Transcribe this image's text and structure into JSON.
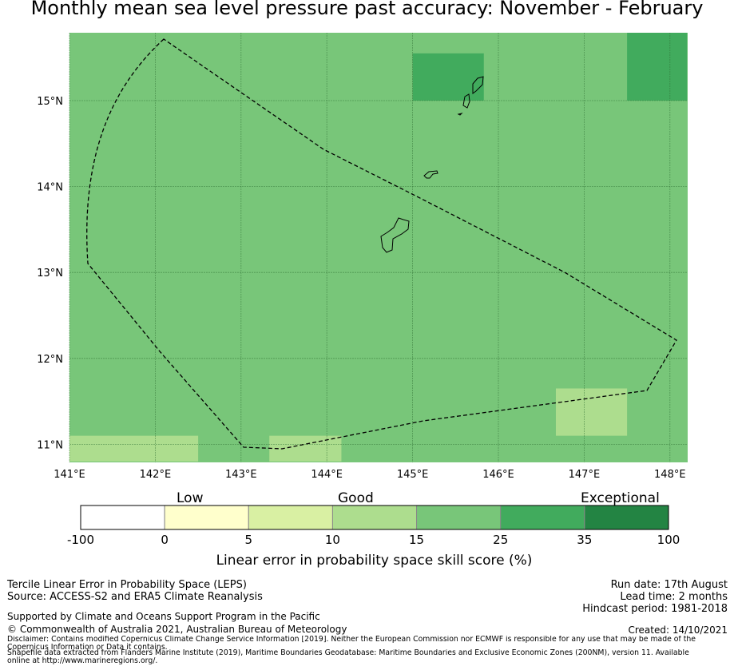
{
  "title": "Monthly mean sea level pressure past accuracy: November - February",
  "map": {
    "lon_labels": [
      "141°E",
      "142°E",
      "143°E",
      "144°E",
      "145°E",
      "146°E",
      "147°E",
      "148°E"
    ],
    "lat_labels": [
      "15°N",
      "14°N",
      "13°N",
      "12°N",
      "11°N"
    ],
    "base_color": "#78c679",
    "cells": [
      {
        "lon": [
          145.0,
          145.83
        ],
        "lat": [
          15.0,
          15.55
        ],
        "category": "25-35",
        "color": "#41ab5d"
      },
      {
        "lon": [
          147.5,
          148.2
        ],
        "lat": [
          15.0,
          15.8
        ],
        "category": "25-35",
        "color": "#41ab5d"
      },
      {
        "lon": [
          146.67,
          147.5
        ],
        "lat": [
          11.1,
          11.65
        ],
        "category": "10-15",
        "color": "#addd8e"
      },
      {
        "lon": [
          141.0,
          142.5
        ],
        "lat": [
          10.8,
          11.1
        ],
        "category": "10-15",
        "color": "#addd8e"
      },
      {
        "lon": [
          143.33,
          144.17
        ],
        "lat": [
          10.8,
          11.1
        ],
        "category": "10-15",
        "color": "#addd8e"
      }
    ]
  },
  "colorbar": {
    "category_labels": [
      "Low",
      "Good",
      "Exceptional"
    ],
    "ticks": [
      "-100",
      "0",
      "5",
      "10",
      "15",
      "25",
      "35",
      "100"
    ],
    "colors": [
      "#ffffff",
      "#ffffcc",
      "#d9f0a3",
      "#addd8e",
      "#78c679",
      "#41ab5d",
      "#238443"
    ],
    "title": "Linear error in probability space skill score (%)"
  },
  "footer": {
    "left1": "Tercile Linear Error in Probability Space (LEPS)",
    "left2": "Source: ACCESS-S2 and ERA5 Climate Reanalysis",
    "supported": "Supported by Climate and Oceans Support Program in the Pacific",
    "copyright": "© Commonwealth of Australia 2021, Australian Bureau of Meteorology",
    "run_date": "Run date: 17th August",
    "lead_time": "Lead time: 2 months",
    "hindcast": "Hindcast period: 1981-2018",
    "created": "Created: 14/10/2021",
    "disclaimer": "Disclaimer: Contains modified Copernicus Climate Change Service Information [2019]. Neither the European Commission nor ECMWF is responsible for any use that may be made of the Copernicus Information or Data it contains.",
    "shapefile": "Shapefile data extracted from Flanders Marine Institute (2019), Maritime Boundaries Geodatabase: Maritime Boundaries and Exclusive Economic Zones (200NM), version 11. Available online at http://www.marineregions.org/."
  }
}
